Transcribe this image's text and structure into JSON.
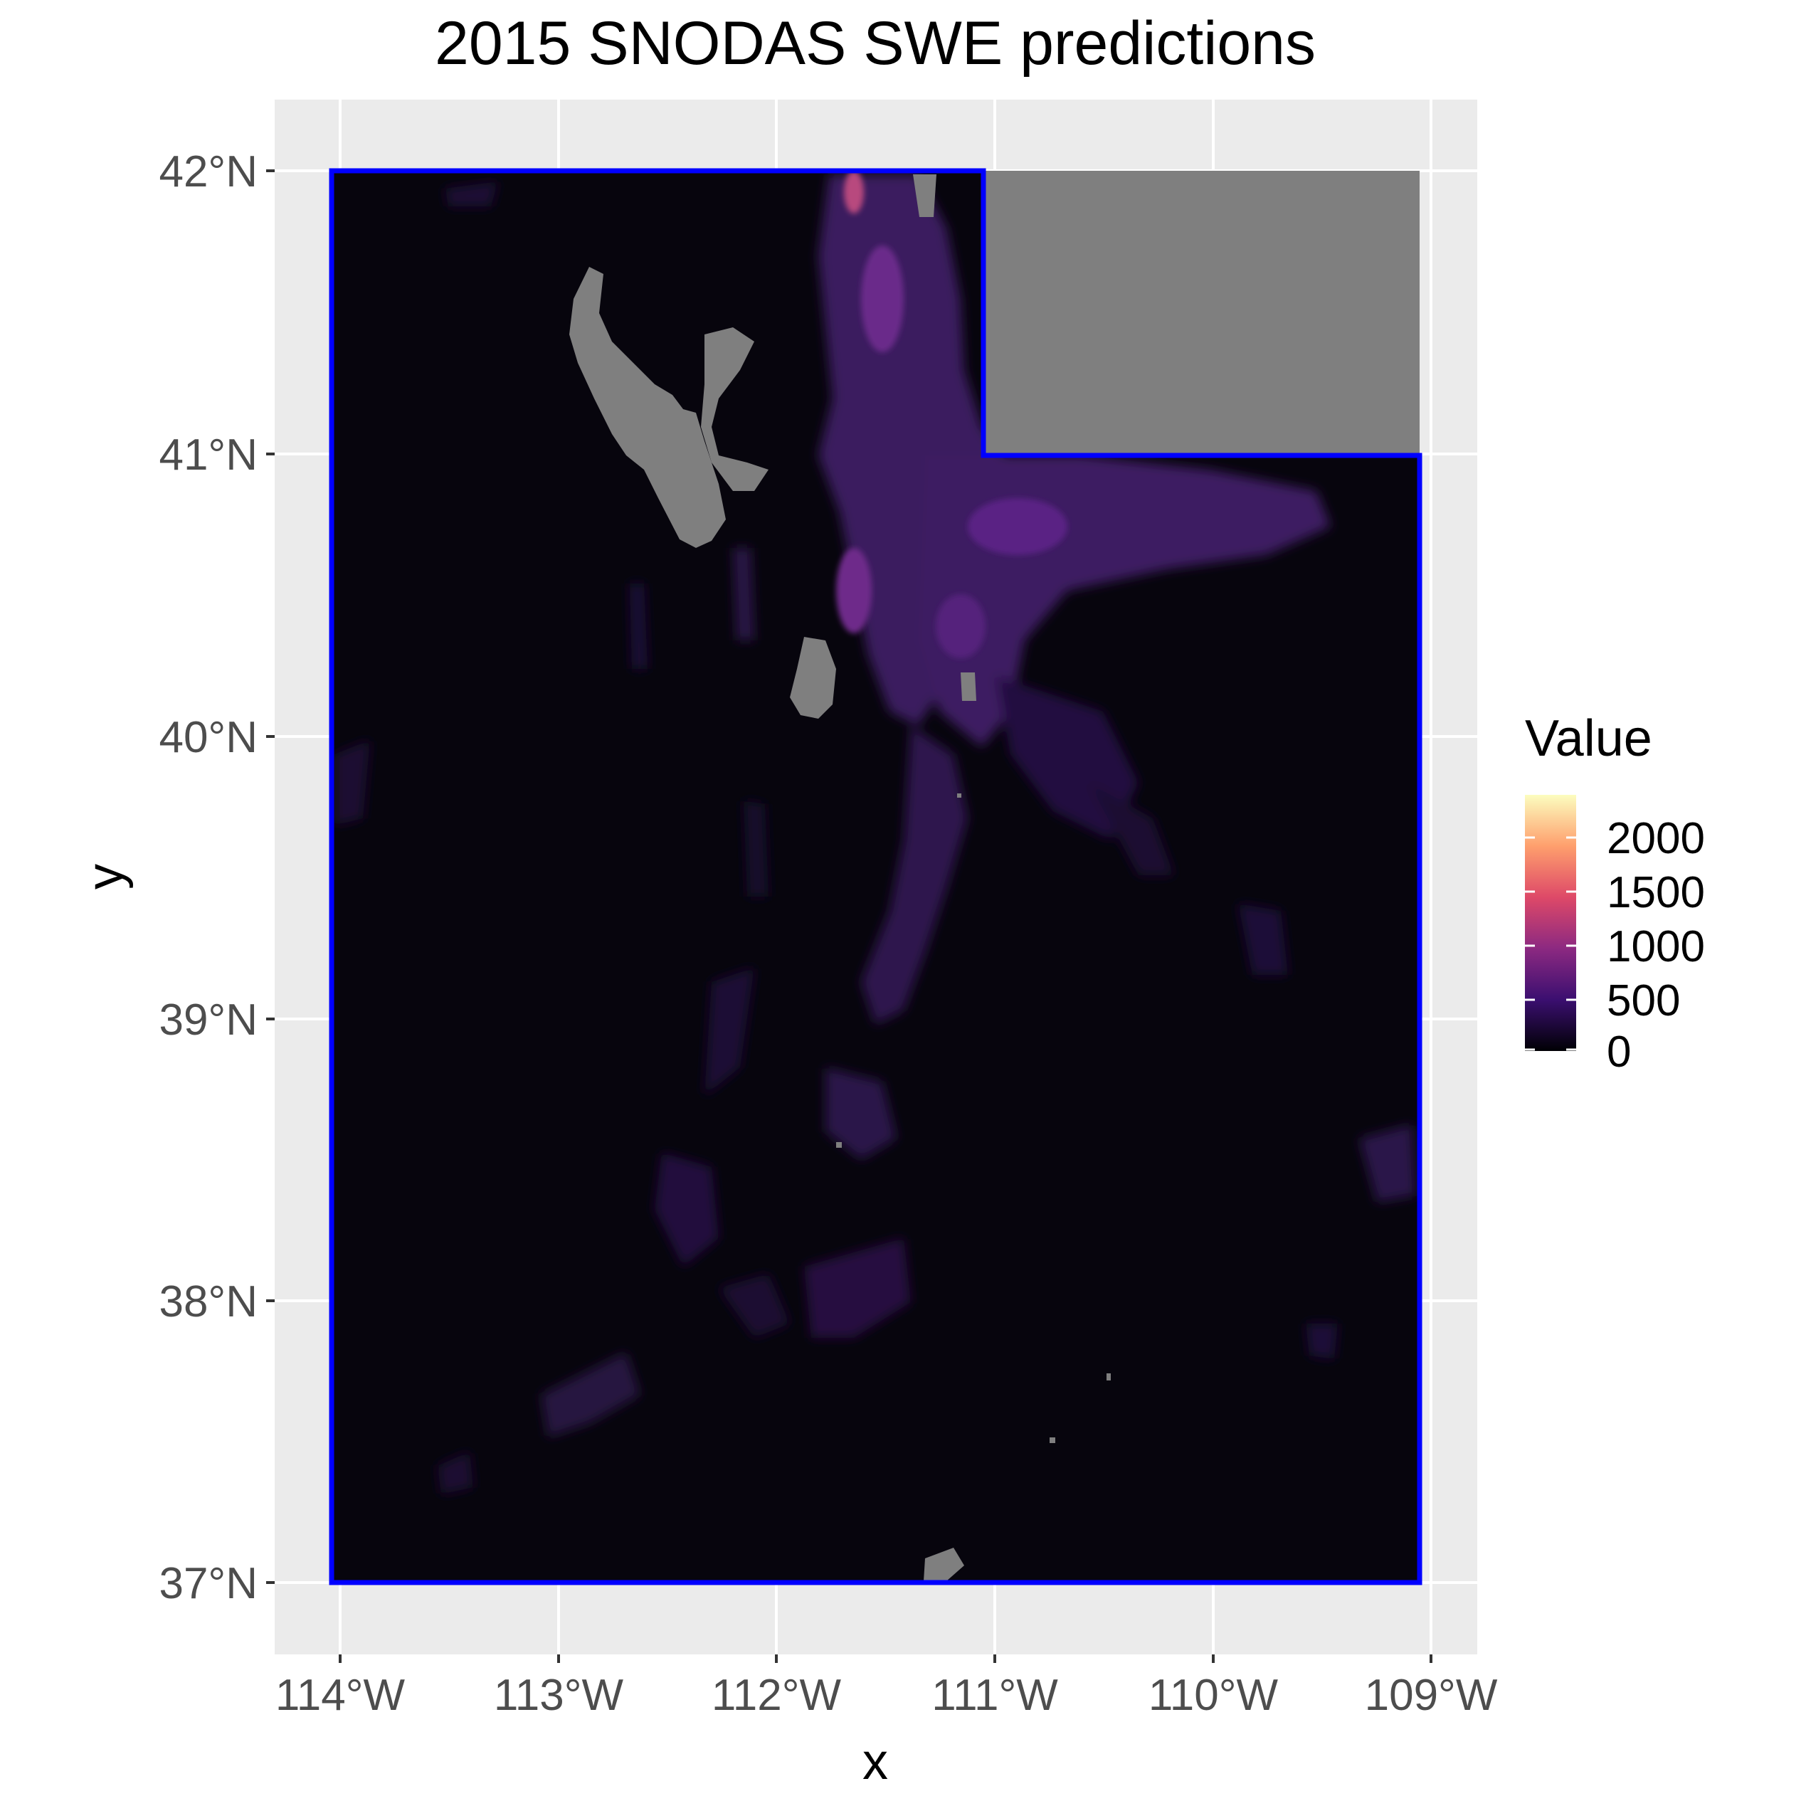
{
  "title": "2015 SNODAS SWE predictions",
  "axes": {
    "x_label": "x",
    "y_label": "y",
    "x_ticks": [
      "114°W",
      "113°W",
      "112°W",
      "111°W",
      "110°W",
      "109°W"
    ],
    "y_ticks": [
      "42°N",
      "41°N",
      "40°N",
      "39°N",
      "38°N",
      "37°N"
    ]
  },
  "legend": {
    "title": "Value",
    "labels": [
      "2000",
      "1500",
      "1000",
      "500",
      "0"
    ],
    "colors": [
      "#000004",
      "#3b0f70",
      "#8c2981",
      "#de4968",
      "#fe9f6d",
      "#fcfdbf"
    ],
    "placement": "right"
  },
  "map": {
    "region": "Utah",
    "lon_range": [
      -114.3,
      -108.8
    ],
    "lat_range": [
      36.75,
      42.25
    ],
    "boundary_color": "#0000ff",
    "panel_background": "#ebebeb",
    "nodata_color": "#7f7f7f",
    "base_color": "#07050d"
  }
}
